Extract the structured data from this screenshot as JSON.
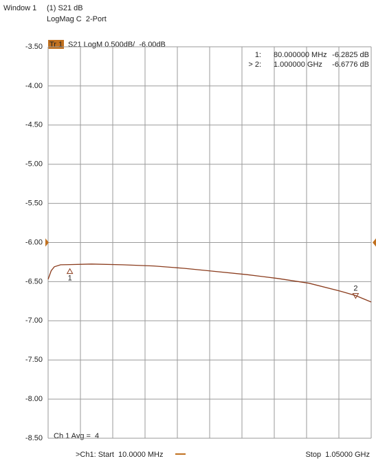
{
  "header": {
    "window": "Window 1",
    "trace_title": "(1) S21 dB",
    "format": "LogMag C  2-Port"
  },
  "chart_data": {
    "type": "line",
    "trace_tag": "Tr 1",
    "scale_label": "S21 LogM 0.500dB/  -6.00dB",
    "reference": -6.0,
    "x": [
      10,
      20,
      30,
      50,
      80,
      150,
      250,
      350,
      450,
      550,
      650,
      750,
      850,
      950,
      1000,
      1050
    ],
    "series": [
      {
        "name": "S21",
        "color": "#8a3b1c",
        "values": [
          -6.47,
          -6.36,
          -6.31,
          -6.285,
          -6.2825,
          -6.275,
          -6.285,
          -6.3,
          -6.33,
          -6.37,
          -6.41,
          -6.46,
          -6.52,
          -6.62,
          -6.6776,
          -6.76
        ]
      }
    ],
    "xlim": [
      10,
      1050
    ],
    "ylim": [
      -8.5,
      -3.5
    ],
    "yticks": [
      {
        "value": -3.5,
        "label": "-3.50"
      },
      {
        "value": -4.0,
        "label": "-4.00"
      },
      {
        "value": -4.5,
        "label": "-4.50"
      },
      {
        "value": -5.0,
        "label": "-5.00"
      },
      {
        "value": -5.5,
        "label": "-5.50"
      },
      {
        "value": -6.0,
        "label": "-6.00"
      },
      {
        "value": -6.5,
        "label": "-6.50"
      },
      {
        "value": -7.0,
        "label": "-7.00"
      },
      {
        "value": -7.5,
        "label": "-7.50"
      },
      {
        "value": -8.0,
        "label": "-8.00"
      },
      {
        "value": -8.5,
        "label": "-8.50"
      }
    ],
    "grid": true,
    "markers": [
      {
        "label": "1",
        "x": 80,
        "y": -6.2825,
        "readout_id": "1:",
        "readout_x": "80.000000 MHz",
        "readout_y": "-6.2825 dB"
      },
      {
        "label": "2",
        "x": 1000,
        "y": -6.6776,
        "readout_id": "> 2:",
        "readout_x": "1.000000 GHz",
        "readout_y": "-6.6776 dB"
      }
    ],
    "averaging": "Ch 1 Avg =  4",
    "start_label": ">Ch1: Start  10.0000 MHz",
    "stop_label": "Stop  1.05000 GHz"
  }
}
